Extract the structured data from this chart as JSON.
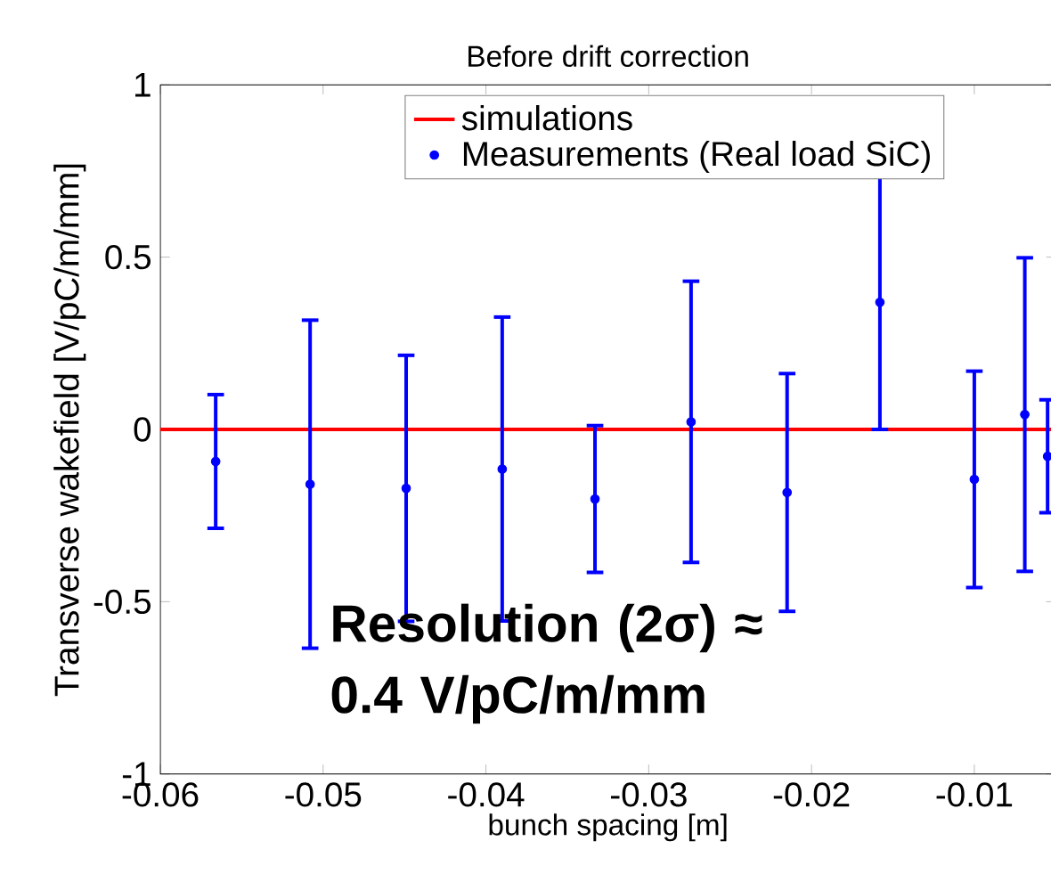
{
  "chart_data": {
    "type": "scatter",
    "title": "Before drift correction",
    "xlabel": "bunch spacing [m]",
    "ylabel": "Transverse wakefield [V/pC/m/mm]",
    "x": [
      -0.0566,
      -0.0508,
      -0.0449,
      -0.039,
      -0.0333,
      -0.0274,
      -0.0215,
      -0.0158,
      -0.01,
      -0.0069,
      -0.0055
    ],
    "series": [
      {
        "name": "simulations",
        "type": "line",
        "color": "#ff0000",
        "marker": "none",
        "line_style": "solid",
        "x": [
          -0.06,
          -0.005
        ],
        "values": [
          0,
          0
        ]
      },
      {
        "name": "Measurements (Real load SiC)",
        "color": "#0000ff",
        "marker": "circle",
        "values": [
          -0.093,
          -0.159,
          -0.171,
          -0.115,
          -0.202,
          0.022,
          -0.183,
          0.369,
          -0.145,
          0.043,
          -0.078
        ],
        "errors": [
          0.194,
          0.476,
          0.386,
          0.441,
          0.213,
          0.408,
          0.345,
          0.369,
          0.314,
          0.455,
          0.164
        ]
      }
    ],
    "xlim": [
      -0.06,
      -0.005
    ],
    "ylim": [
      -1,
      1
    ],
    "xticks": [
      -0.06,
      -0.05,
      -0.04,
      -0.03,
      -0.02,
      -0.01
    ],
    "yticks": [
      -1,
      -0.5,
      0,
      0.5,
      1
    ],
    "grid": false,
    "legend": "top",
    "annotations": [
      "Resolution (2σ) ≈ 0.4 V/pC/m/mm"
    ]
  }
}
